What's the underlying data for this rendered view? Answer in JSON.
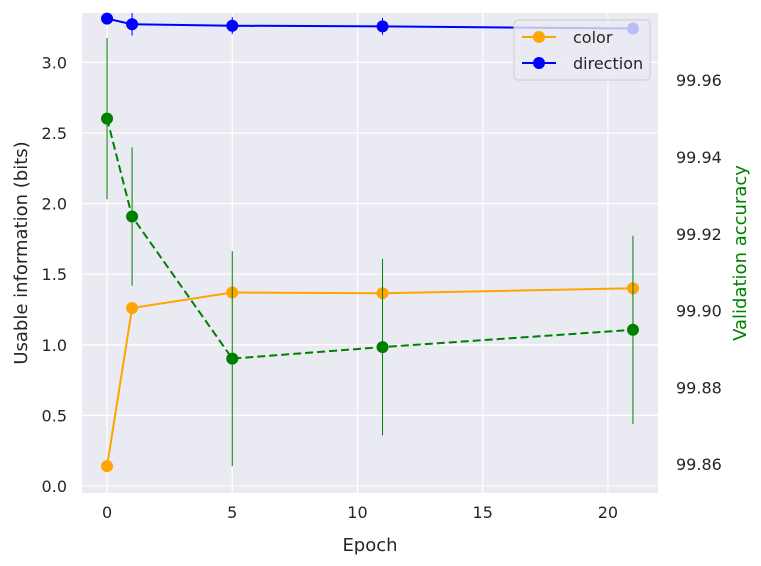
{
  "chart_data": {
    "type": "line",
    "xlabel": "Epoch",
    "ylabel": "Usable information (bits)",
    "ylabel_right": "Validation accuracy",
    "xlim": [
      -1,
      22
    ],
    "ylim": [
      -0.05,
      3.35
    ],
    "ylim_right": [
      99.8525,
      99.9775
    ],
    "x_ticks": [
      0,
      5,
      10,
      15,
      20
    ],
    "y_ticks": [
      0.0,
      0.5,
      1.0,
      1.5,
      2.0,
      2.5,
      3.0
    ],
    "y_tick_labels": [
      "0.0",
      "0.5",
      "1.0",
      "1.5",
      "2.0",
      "2.5",
      "3.0"
    ],
    "y_right_ticks": [
      99.86,
      99.88,
      99.9,
      99.92,
      99.94,
      99.96
    ],
    "y_right_tick_labels": [
      "99.86",
      "99.88",
      "99.90",
      "99.92",
      "99.94",
      "99.96"
    ],
    "grid": true,
    "legend_position": "top-right",
    "series": [
      {
        "name": "color",
        "axis": "left",
        "color": "#FFA500",
        "line_style": "solid",
        "x": [
          0,
          1,
          5,
          11,
          21
        ],
        "y": [
          0.14,
          1.26,
          1.37,
          1.365,
          1.4
        ],
        "err": [
          0,
          0,
          0,
          0,
          0
        ]
      },
      {
        "name": "direction",
        "axis": "left",
        "color": "#0000FF",
        "line_style": "solid",
        "x": [
          0,
          1,
          5,
          11,
          21
        ],
        "y": [
          3.31,
          3.27,
          3.26,
          3.255,
          3.24
        ],
        "err": [
          0.04,
          0.08,
          0.06,
          0.06,
          0.04
        ]
      },
      {
        "axis": "right",
        "color": "#008000",
        "line_style": "dashed",
        "x": [
          0,
          1,
          5,
          11,
          21
        ],
        "y": [
          99.95,
          99.9245,
          99.8875,
          99.8905,
          99.895
        ],
        "err": [
          0.021,
          0.018,
          0.028,
          0.023,
          0.0245
        ]
      }
    ]
  }
}
